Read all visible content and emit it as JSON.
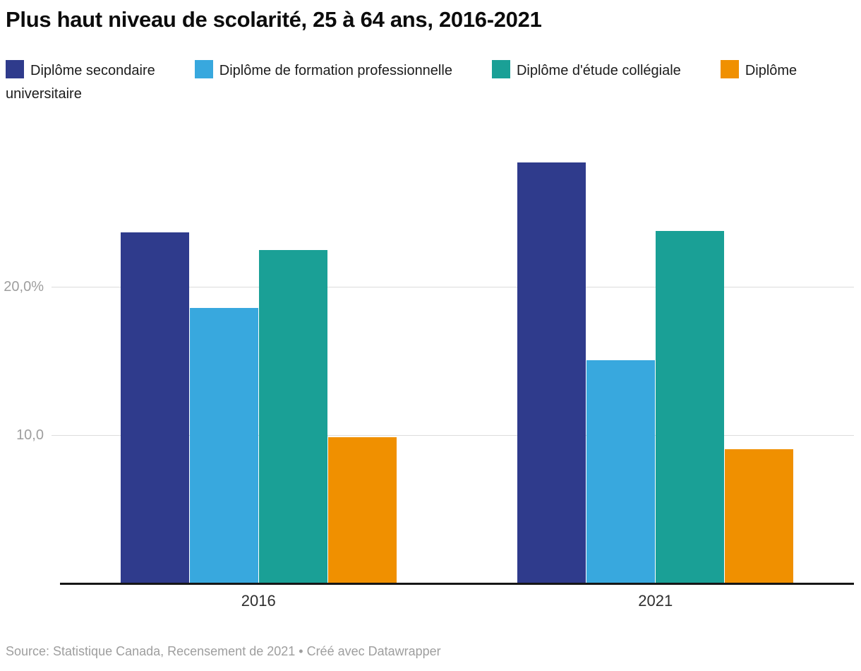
{
  "title": "Plus haut niveau de scolarité, 25 à 64 ans, 2016-2021",
  "footer": {
    "source": "Source: Statistique Canada, Recensement de 2021 • Créé avec Datawrapper"
  },
  "chart_data": {
    "type": "bar",
    "title": "Plus haut niveau de scolarité, 25 à 64 ans, 2016-2021",
    "categories": [
      "2016",
      "2021"
    ],
    "series": [
      {
        "name": "Diplôme secondaire",
        "color": "#2f3b8c",
        "values": [
          23.7,
          28.4
        ]
      },
      {
        "name": "Diplôme de formation professionnelle",
        "color": "#38a8de",
        "values": [
          18.6,
          15.1
        ]
      },
      {
        "name": "Diplôme d'étude collégiale",
        "color": "#1aa096",
        "values": [
          22.5,
          23.8
        ]
      },
      {
        "name": "Diplôme universitaire",
        "color": "#f09000",
        "values": [
          9.9,
          9.1
        ]
      }
    ],
    "unit": "%",
    "yticks": [
      {
        "value": 10,
        "label": "10,0"
      },
      {
        "value": 20,
        "label": "20,0%"
      }
    ],
    "ylim": [
      0,
      31.5
    ],
    "grid": "horizontal",
    "gridline_color": "#dcdcdc",
    "axis_color": "#161616",
    "legend_position": "top",
    "source": "Source: Statistique Canada, Recensement de 2021 • Créé avec Datawrapper"
  }
}
